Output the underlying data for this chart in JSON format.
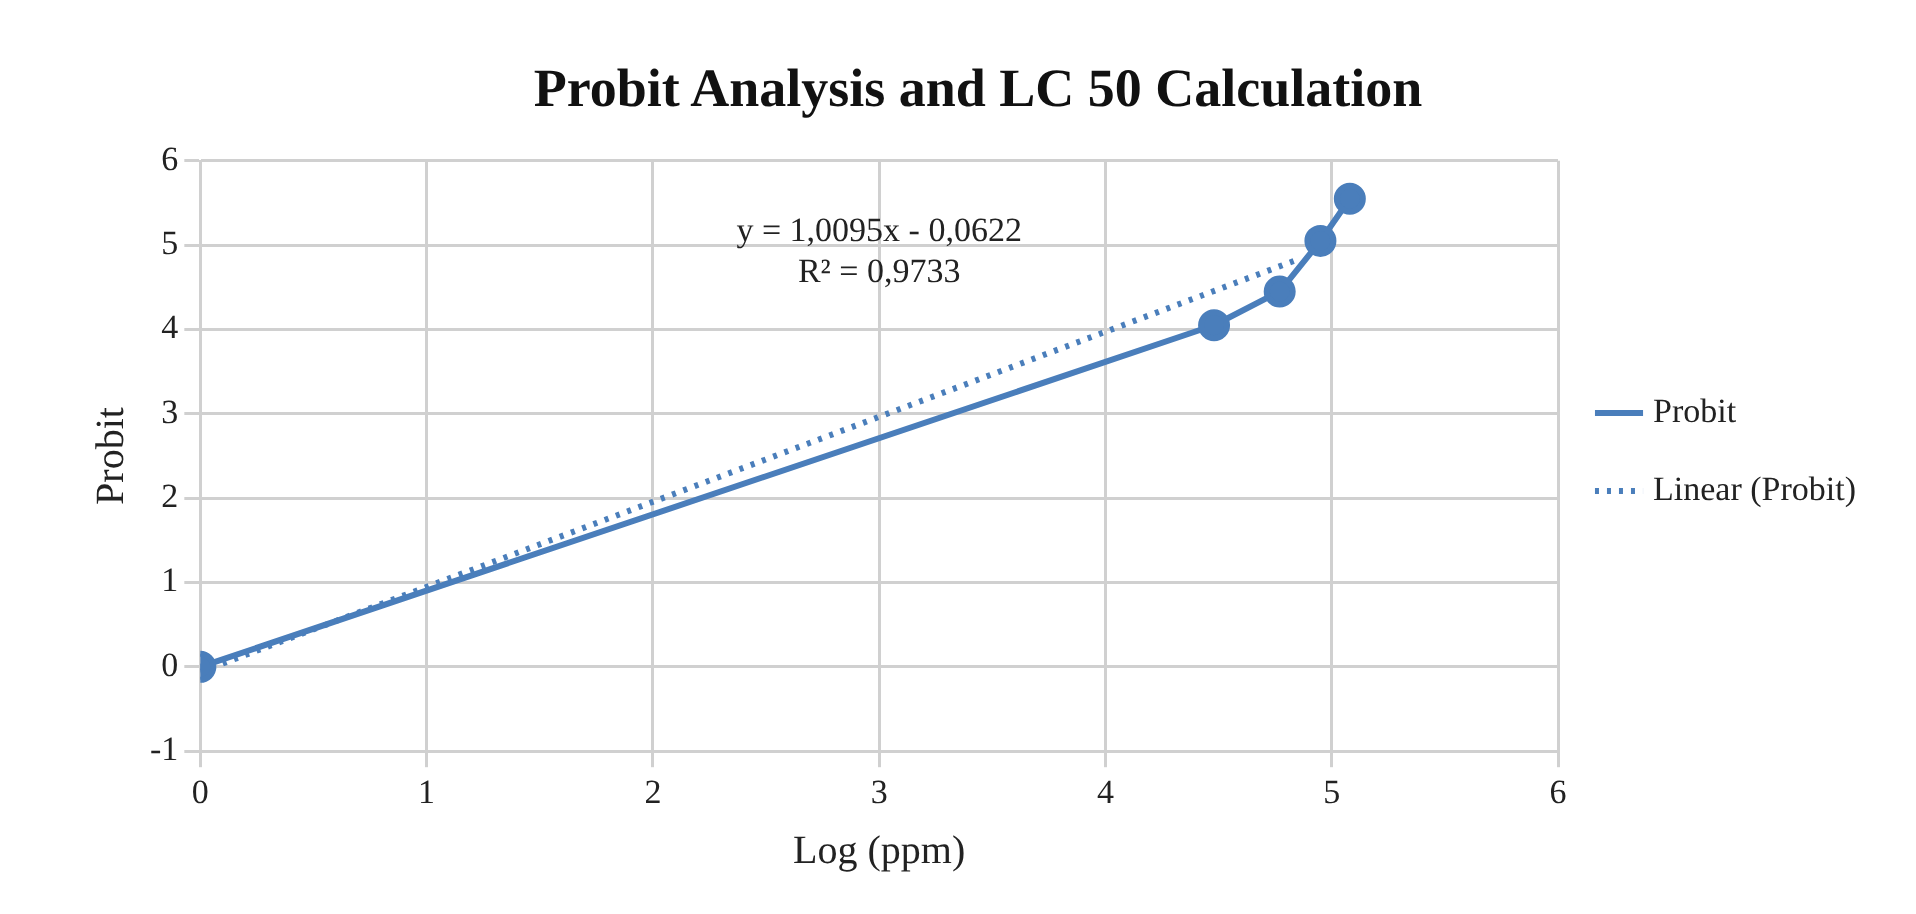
{
  "chart_data": {
    "type": "line",
    "title": "Probit Analysis and LC 50 Calculation",
    "xlabel": "Log (ppm)",
    "ylabel": "Probit",
    "xlim": [
      0,
      6
    ],
    "xticks": [
      0,
      1,
      2,
      3,
      4,
      5,
      6
    ],
    "ylim": [
      -1,
      6
    ],
    "yticks": [
      -1,
      0,
      1,
      2,
      3,
      4,
      5,
      6
    ],
    "grid": true,
    "legend": "right",
    "series": [
      {
        "name": "Probit",
        "color": "#4a7ebb",
        "x": [
          0,
          4.48,
          4.77,
          4.95,
          5.08
        ],
        "values": [
          0,
          4.05,
          4.45,
          5.05,
          5.55
        ],
        "marker": "circle",
        "line_style": "solid"
      },
      {
        "name": "Linear (Probit)",
        "color": "#4a7ebb",
        "x": [
          0,
          4.85
        ],
        "values": [
          -0.06,
          4.83
        ],
        "marker": "none",
        "line_style": "dotted"
      }
    ],
    "annotations": [
      "y = 1,0095x - 0,0622",
      "R² = 0,9733"
    ]
  }
}
